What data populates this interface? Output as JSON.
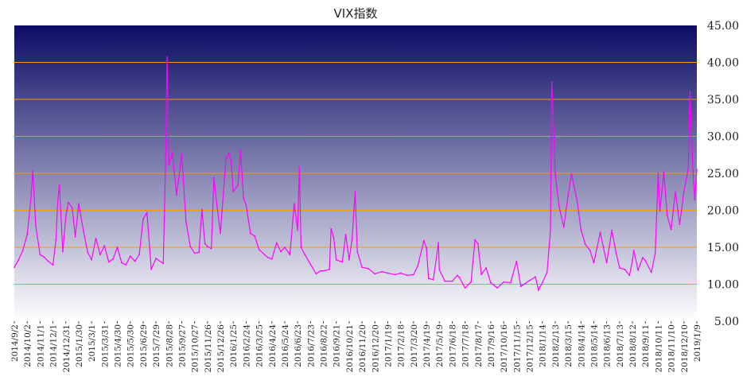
{
  "chart_data": {
    "type": "line",
    "title": "VIX指数",
    "xlabel": "",
    "ylabel": "",
    "ylim": [
      5,
      45
    ],
    "y_ticks": [
      "5.00",
      "10.00",
      "15.00",
      "20.00",
      "25.00",
      "30.00",
      "35.00",
      "40.00",
      "45.00"
    ],
    "y_axis_side": "right",
    "grid": "horizontal",
    "line_color": "#ff00ff",
    "gridline_color": "#ff9900",
    "background_gradient": [
      "#0c0c66",
      "#ffffff"
    ],
    "x_tick_labels": [
      "2014/9/2",
      "2014/10/2",
      "2014/11/1",
      "2014/12/1",
      "2014/12/31",
      "2015/1/30",
      "2015/3/1",
      "2015/3/31",
      "2015/4/30",
      "2015/5/30",
      "2015/6/29",
      "2015/7/29",
      "2015/8/28",
      "2015/9/27",
      "2015/10/27",
      "2015/11/26",
      "2015/12/26",
      "2016/1/25",
      "2016/2/24",
      "2016/3/25",
      "2016/4/24",
      "2016/5/24",
      "2016/6/23",
      "2016/7/23",
      "2016/8/22",
      "2016/9/21",
      "2016/10/21",
      "2016/11/20",
      "2016/12/20",
      "2017/1/19",
      "2017/2/18",
      "2017/3/20",
      "2017/4/19",
      "2017/5/19",
      "2017/6/18",
      "2017/7/18",
      "2017/8/17",
      "2017/9/16",
      "2017/10/16",
      "2017/11/15",
      "2017/12/15",
      "2018/1/14",
      "2018/2/13",
      "2018/3/15",
      "2018/4/14",
      "2018/5/14",
      "2018/6/13",
      "2018/7/13",
      "2018/8/12",
      "2018/9/11",
      "2018/10/11",
      "2018/11/10",
      "2018/12/10",
      "2019/1/9"
    ],
    "series": [
      {
        "values": [
          [
            "2014/9/2",
            12.3
          ],
          [
            "2014/9/12",
            13.3
          ],
          [
            "2014/9/22",
            14.6
          ],
          [
            "2014/10/2",
            16.7
          ],
          [
            "2014/10/10",
            21.2
          ],
          [
            "2014/10/15",
            25.3
          ],
          [
            "2014/10/22",
            17.9
          ],
          [
            "2014/11/1",
            14.0
          ],
          [
            "2014/11/10",
            13.7
          ],
          [
            "2014/11/20",
            13.1
          ],
          [
            "2014/12/1",
            12.6
          ],
          [
            "2014/12/8",
            16.0
          ],
          [
            "2014/12/12",
            21.1
          ],
          [
            "2014/12/16",
            23.4
          ],
          [
            "2014/12/24",
            14.4
          ],
          [
            "2014/12/31",
            19.2
          ],
          [
            "2015/1/6",
            21.1
          ],
          [
            "2015/1/15",
            20.3
          ],
          [
            "2015/1/22",
            16.4
          ],
          [
            "2015/1/30",
            20.9
          ],
          [
            "2015/2/10",
            17.2
          ],
          [
            "2015/2/20",
            14.3
          ],
          [
            "2015/3/1",
            13.3
          ],
          [
            "2015/3/11",
            16.2
          ],
          [
            "2015/3/21",
            14.0
          ],
          [
            "2015/3/31",
            15.2
          ],
          [
            "2015/4/10",
            13.0
          ],
          [
            "2015/4/20",
            13.4
          ],
          [
            "2015/4/30",
            15.0
          ],
          [
            "2015/5/10",
            12.9
          ],
          [
            "2015/5/20",
            12.6
          ],
          [
            "2015/5/30",
            13.8
          ],
          [
            "2015/6/10",
            13.1
          ],
          [
            "2015/6/20",
            14.0
          ],
          [
            "2015/6/29",
            18.8
          ],
          [
            "2015/7/8",
            19.7
          ],
          [
            "2015/7/18",
            12.0
          ],
          [
            "2015/7/29",
            13.5
          ],
          [
            "2015/8/15",
            12.8
          ],
          [
            "2015/8/21",
            28.0
          ],
          [
            "2015/8/24",
            40.7
          ],
          [
            "2015/8/28",
            26.1
          ],
          [
            "2015/9/5",
            27.8
          ],
          [
            "2015/9/15",
            22.1
          ],
          [
            "2015/9/27",
            27.6
          ],
          [
            "2015/10/7",
            18.4
          ],
          [
            "2015/10/17",
            15.1
          ],
          [
            "2015/10/27",
            14.2
          ],
          [
            "2015/11/6",
            14.3
          ],
          [
            "2015/11/13",
            20.1
          ],
          [
            "2015/11/20",
            15.5
          ],
          [
            "2015/11/26",
            15.1
          ],
          [
            "2015/12/5",
            14.8
          ],
          [
            "2015/12/11",
            24.4
          ],
          [
            "2015/12/18",
            20.7
          ],
          [
            "2015/12/26",
            16.9
          ],
          [
            "2016/1/8",
            27.0
          ],
          [
            "2016/1/15",
            27.7
          ],
          [
            "2016/1/20",
            26.7
          ],
          [
            "2016/1/25",
            22.5
          ],
          [
            "2016/2/5",
            23.4
          ],
          [
            "2016/2/11",
            28.1
          ],
          [
            "2016/2/18",
            21.6
          ],
          [
            "2016/2/24",
            20.7
          ],
          [
            "2016/3/5",
            16.9
          ],
          [
            "2016/3/15",
            16.5
          ],
          [
            "2016/3/25",
            14.7
          ],
          [
            "2016/4/5",
            14.1
          ],
          [
            "2016/4/15",
            13.6
          ],
          [
            "2016/4/24",
            13.4
          ],
          [
            "2016/5/5",
            15.6
          ],
          [
            "2016/5/15",
            14.4
          ],
          [
            "2016/5/24",
            15.0
          ],
          [
            "2016/6/5",
            14.0
          ],
          [
            "2016/6/15",
            20.9
          ],
          [
            "2016/6/23",
            17.3
          ],
          [
            "2016/6/27",
            25.8
          ],
          [
            "2016/7/1",
            15.0
          ],
          [
            "2016/7/10",
            14.0
          ],
          [
            "2016/7/23",
            12.7
          ],
          [
            "2016/8/5",
            11.4
          ],
          [
            "2016/8/15",
            11.8
          ],
          [
            "2016/8/22",
            11.8
          ],
          [
            "2016/9/5",
            12.0
          ],
          [
            "2016/9/9",
            17.5
          ],
          [
            "2016/9/15",
            16.3
          ],
          [
            "2016/9/21",
            13.3
          ],
          [
            "2016/10/5",
            13.0
          ],
          [
            "2016/10/13",
            16.7
          ],
          [
            "2016/10/21",
            13.3
          ],
          [
            "2016/10/28",
            16.2
          ],
          [
            "2016/11/4",
            22.5
          ],
          [
            "2016/11/9",
            14.4
          ],
          [
            "2016/11/20",
            12.3
          ],
          [
            "2016/12/5",
            12.1
          ],
          [
            "2016/12/20",
            11.4
          ],
          [
            "2017/1/5",
            11.7
          ],
          [
            "2017/1/19",
            11.5
          ],
          [
            "2017/2/5",
            11.3
          ],
          [
            "2017/2/18",
            11.5
          ],
          [
            "2017/3/5",
            11.2
          ],
          [
            "2017/3/20",
            11.3
          ],
          [
            "2017/3/30",
            12.5
          ],
          [
            "2017/4/13",
            15.9
          ],
          [
            "2017/4/19",
            14.9
          ],
          [
            "2017/4/24",
            10.8
          ],
          [
            "2017/5/5",
            10.6
          ],
          [
            "2017/5/17",
            15.6
          ],
          [
            "2017/5/19",
            12.0
          ],
          [
            "2017/6/1",
            10.4
          ],
          [
            "2017/6/18",
            10.4
          ],
          [
            "2017/6/30",
            11.2
          ],
          [
            "2017/7/5",
            10.9
          ],
          [
            "2017/7/18",
            9.5
          ],
          [
            "2017/8/1",
            10.3
          ],
          [
            "2017/8/10",
            16.0
          ],
          [
            "2017/8/17",
            15.5
          ],
          [
            "2017/8/25",
            11.3
          ],
          [
            "2017/9/5",
            12.2
          ],
          [
            "2017/9/16",
            10.2
          ],
          [
            "2017/10/1",
            9.5
          ],
          [
            "2017/10/16",
            10.3
          ],
          [
            "2017/11/1",
            10.2
          ],
          [
            "2017/11/15",
            13.1
          ],
          [
            "2017/11/25",
            9.7
          ],
          [
            "2017/12/15",
            10.5
          ],
          [
            "2017/12/29",
            11.0
          ],
          [
            "2018/1/5",
            9.2
          ],
          [
            "2018/1/14",
            10.2
          ],
          [
            "2018/1/25",
            11.6
          ],
          [
            "2018/2/2",
            17.3
          ],
          [
            "2018/2/5",
            37.3
          ],
          [
            "2018/2/8",
            33.5
          ],
          [
            "2018/2/13",
            25.0
          ],
          [
            "2018/2/22",
            20.5
          ],
          [
            "2018/3/5",
            17.7
          ],
          [
            "2018/3/15",
            22.0
          ],
          [
            "2018/3/23",
            24.9
          ],
          [
            "2018/4/5",
            21.3
          ],
          [
            "2018/4/14",
            17.4
          ],
          [
            "2018/4/24",
            15.4
          ],
          [
            "2018/5/5",
            14.6
          ],
          [
            "2018/5/14",
            12.9
          ],
          [
            "2018/5/29",
            17.0
          ],
          [
            "2018/6/13",
            12.9
          ],
          [
            "2018/6/25",
            17.3
          ],
          [
            "2018/7/5",
            14.2
          ],
          [
            "2018/7/13",
            12.2
          ],
          [
            "2018/7/25",
            12.0
          ],
          [
            "2018/8/5",
            11.2
          ],
          [
            "2018/8/12",
            13.2
          ],
          [
            "2018/8/15",
            14.6
          ],
          [
            "2018/8/25",
            11.9
          ],
          [
            "2018/9/5",
            13.6
          ],
          [
            "2018/9/11",
            13.2
          ],
          [
            "2018/9/25",
            11.6
          ],
          [
            "2018/10/4",
            14.2
          ],
          [
            "2018/10/11",
            25.0
          ],
          [
            "2018/10/15",
            19.9
          ],
          [
            "2018/10/24",
            25.2
          ],
          [
            "2018/11/1",
            19.3
          ],
          [
            "2018/11/10",
            17.4
          ],
          [
            "2018/11/20",
            22.5
          ],
          [
            "2018/11/30",
            18.1
          ],
          [
            "2018/12/10",
            22.6
          ],
          [
            "2018/12/20",
            25.6
          ],
          [
            "2018/12/24",
            36.1
          ],
          [
            "2018/12/31",
            25.4
          ],
          [
            "2019/1/4",
            21.4
          ],
          [
            "2019/1/9",
            25.5
          ]
        ]
      }
    ]
  }
}
